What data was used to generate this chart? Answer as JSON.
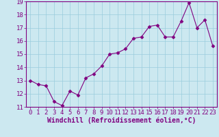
{
  "x": [
    0,
    1,
    2,
    3,
    4,
    5,
    6,
    7,
    8,
    9,
    10,
    11,
    12,
    13,
    14,
    15,
    16,
    17,
    18,
    19,
    20,
    21,
    22,
    23
  ],
  "y": [
    13.0,
    12.7,
    12.6,
    11.4,
    11.1,
    12.2,
    11.9,
    13.2,
    13.5,
    14.1,
    15.0,
    15.1,
    15.4,
    16.2,
    16.3,
    17.1,
    17.2,
    16.3,
    16.3,
    17.5,
    18.9,
    17.0,
    17.6,
    15.6
  ],
  "line_color": "#800080",
  "marker": "D",
  "marker_size": 2.5,
  "bg_color": "#cce8f0",
  "grid_color": "#99ccdd",
  "xlabel": "Windchill (Refroidissement éolien,°C)",
  "ylim": [
    11,
    19
  ],
  "xlim_min": -0.5,
  "xlim_max": 23.5,
  "yticks": [
    11,
    12,
    13,
    14,
    15,
    16,
    17,
    18,
    19
  ],
  "xticks": [
    0,
    1,
    2,
    3,
    4,
    5,
    6,
    7,
    8,
    9,
    10,
    11,
    12,
    13,
    14,
    15,
    16,
    17,
    18,
    19,
    20,
    21,
    22,
    23
  ],
  "xlabel_fontsize": 7,
  "tick_fontsize": 6.5,
  "spine_color": "#800080",
  "title_color": "#800080"
}
